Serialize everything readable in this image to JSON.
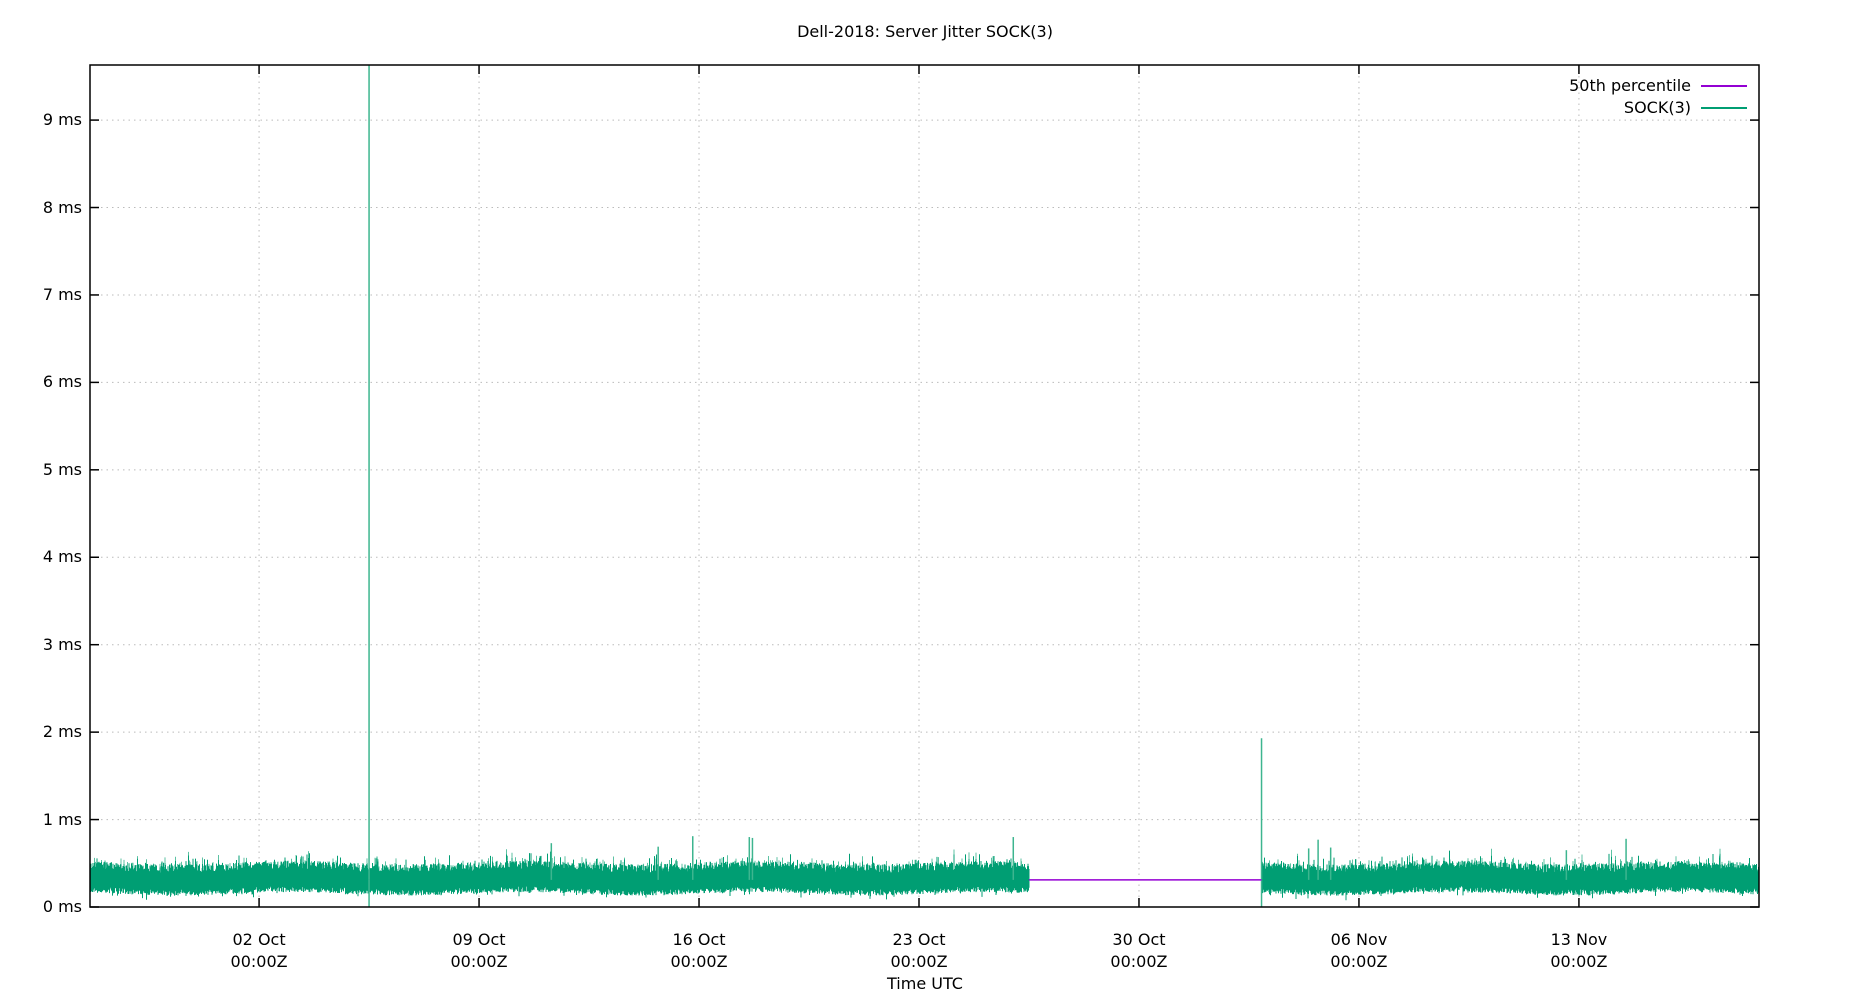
{
  "chart_data": {
    "type": "line",
    "title": "Dell-2018: Server Jitter SOCK(3)",
    "xlabel": "Time UTC",
    "ylabel": "",
    "ylim": [
      0,
      9.63
    ],
    "y_ticks": [
      {
        "value": 0,
        "label": "0 ms"
      },
      {
        "value": 1,
        "label": "1 ms"
      },
      {
        "value": 2,
        "label": "2 ms"
      },
      {
        "value": 3,
        "label": "3 ms"
      },
      {
        "value": 4,
        "label": "4 ms"
      },
      {
        "value": 5,
        "label": "5 ms"
      },
      {
        "value": 6,
        "label": "6 ms"
      },
      {
        "value": 7,
        "label": "7 ms"
      },
      {
        "value": 8,
        "label": "8 ms"
      },
      {
        "value": 9,
        "label": "9 ms"
      }
    ],
    "x_range_days": [
      -5.38,
      47.73
    ],
    "x_origin": "02 Oct 00:00Z",
    "x_ticks": [
      {
        "day": 0,
        "label": "02 Oct",
        "sublabel": "00:00Z"
      },
      {
        "day": 7,
        "label": "09 Oct",
        "sublabel": "00:00Z"
      },
      {
        "day": 14,
        "label": "16 Oct",
        "sublabel": "00:00Z"
      },
      {
        "day": 21,
        "label": "23 Oct",
        "sublabel": "00:00Z"
      },
      {
        "day": 28,
        "label": "30 Oct",
        "sublabel": "00:00Z"
      },
      {
        "day": 35,
        "label": "06 Nov",
        "sublabel": "00:00Z"
      },
      {
        "day": 42,
        "label": "13 Nov",
        "sublabel": "00:00Z"
      }
    ],
    "grid": true,
    "legend_position": "top-right",
    "series": [
      {
        "name": "50th percentile",
        "color": "#9400d3",
        "kind": "constant",
        "value": 0.31,
        "x_start_day": 24.5,
        "x_end_day": 31.9
      },
      {
        "name": "SOCK(3)",
        "color": "#009e73",
        "kind": "noisy_band",
        "segments": [
          {
            "x_start_day": -5.38,
            "x_end_day": 24.5
          },
          {
            "x_start_day": 31.9,
            "x_end_day": 47.73
          }
        ],
        "band_low": 0.2,
        "band_high": 0.5,
        "median": 0.31,
        "spikes": [
          {
            "day": 3.5,
            "value": 9.63
          },
          {
            "day": 9.3,
            "value": 0.73
          },
          {
            "day": 12.7,
            "value": 0.69
          },
          {
            "day": 13.8,
            "value": 0.81
          },
          {
            "day": 15.6,
            "value": 0.8
          },
          {
            "day": 15.7,
            "value": 0.79
          },
          {
            "day": 24.0,
            "value": 0.8
          },
          {
            "day": 31.9,
            "value": 1.93
          },
          {
            "day": 33.4,
            "value": 0.67
          },
          {
            "day": 33.7,
            "value": 0.77
          },
          {
            "day": 34.1,
            "value": 0.68
          },
          {
            "day": 41.6,
            "value": 0.65
          },
          {
            "day": 43.5,
            "value": 0.78
          }
        ]
      }
    ]
  }
}
